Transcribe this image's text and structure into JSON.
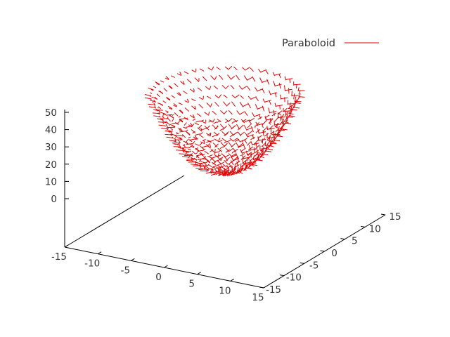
{
  "chart_data": {
    "type": "surface",
    "style": "3d-impulses",
    "x_range": [
      -15,
      15
    ],
    "y_range": [
      -15,
      15
    ],
    "z_range": [
      0,
      55
    ],
    "x_ticks": [
      "-15",
      "-10",
      "-5",
      "0",
      "5",
      "10",
      "15"
    ],
    "y_ticks": [
      "-15",
      "-10",
      "-5",
      "0",
      "5",
      "10",
      "15"
    ],
    "z_ticks": [
      "0",
      "10",
      "20",
      "30",
      "40",
      "50"
    ],
    "grid": false,
    "legend_position": "top-right",
    "series": [
      {
        "name": "Paraboloid",
        "color": "#e00000",
        "z_min": 5,
        "z_max": 50,
        "surface_radius_max": 9.5
      }
    ]
  }
}
